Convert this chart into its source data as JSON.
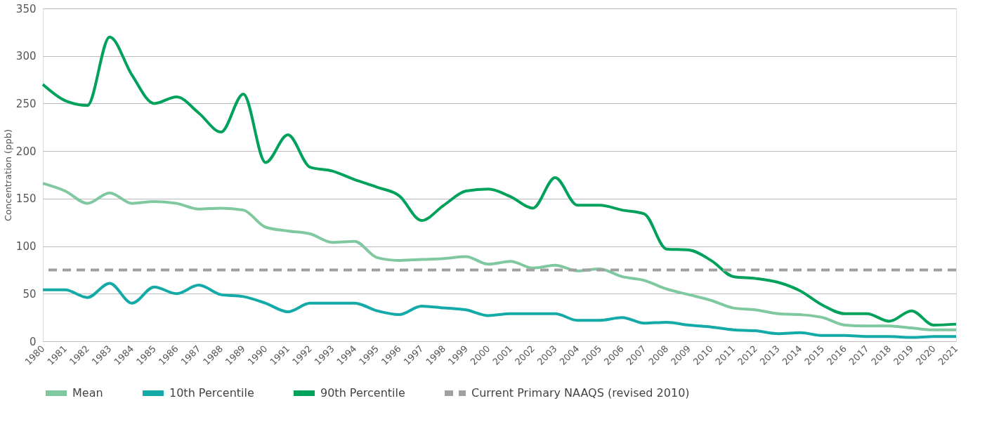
{
  "chart_data": {
    "type": "line",
    "ylabel": "Concentration (ppb)",
    "categories": [
      "1980",
      "1981",
      "1982",
      "1983",
      "1984",
      "1985",
      "1986",
      "1987",
      "1988",
      "1989",
      "1990",
      "1991",
      "1992",
      "1993",
      "1994",
      "1995",
      "1996",
      "1997",
      "1998",
      "1999",
      "2000",
      "2001",
      "2002",
      "2003",
      "2004",
      "2005",
      "2006",
      "2007",
      "2008",
      "2009",
      "2010",
      "2011",
      "2012",
      "2013",
      "2014",
      "2015",
      "2016",
      "2017",
      "2018",
      "2019",
      "2020",
      "2021"
    ],
    "series": [
      {
        "name": "Mean",
        "color": "#80c8a0",
        "line_style": "solid",
        "values": [
          166,
          158,
          145,
          156,
          145,
          147,
          145,
          139,
          140,
          138,
          120,
          116,
          113,
          104,
          105,
          88,
          85,
          86,
          87,
          89,
          81,
          84,
          77,
          80,
          74,
          76,
          68,
          64,
          55,
          49,
          43,
          35,
          33,
          29,
          28,
          25,
          17,
          16,
          16,
          14,
          12,
          12
        ]
      },
      {
        "name": "10th Percentile",
        "color": "#14aaa8",
        "line_style": "solid",
        "values": [
          54,
          54,
          46,
          61,
          40,
          57,
          50,
          59,
          49,
          47,
          40,
          31,
          40,
          40,
          40,
          32,
          28,
          37,
          35,
          33,
          27,
          29,
          29,
          29,
          22,
          22,
          25,
          19,
          20,
          17,
          15,
          12,
          11,
          8,
          9,
          6,
          6,
          5,
          5,
          4,
          5,
          5
        ]
      },
      {
        "name": "90th Percentile",
        "color": "#00a15a",
        "line_style": "solid",
        "values": [
          270,
          253,
          248,
          320,
          280,
          250,
          257,
          240,
          220,
          260,
          188,
          217,
          183,
          179,
          170,
          162,
          153,
          127,
          143,
          158,
          160,
          152,
          140,
          172,
          143,
          143,
          138,
          134,
          97,
          96,
          85,
          68,
          66,
          62,
          53,
          38,
          29,
          29,
          21,
          32,
          17,
          18
        ]
      }
    ],
    "ref_lines": [
      {
        "axis": "y",
        "value": 75,
        "label": "Current Primary NAAQS (revised 2010)",
        "color": "#a0a0a0",
        "line_style": "dashed"
      }
    ],
    "ylim": [
      0,
      350
    ],
    "yticks": [
      0,
      50,
      100,
      150,
      200,
      250,
      300,
      350
    ],
    "grid": "y",
    "legend": "bottom"
  }
}
